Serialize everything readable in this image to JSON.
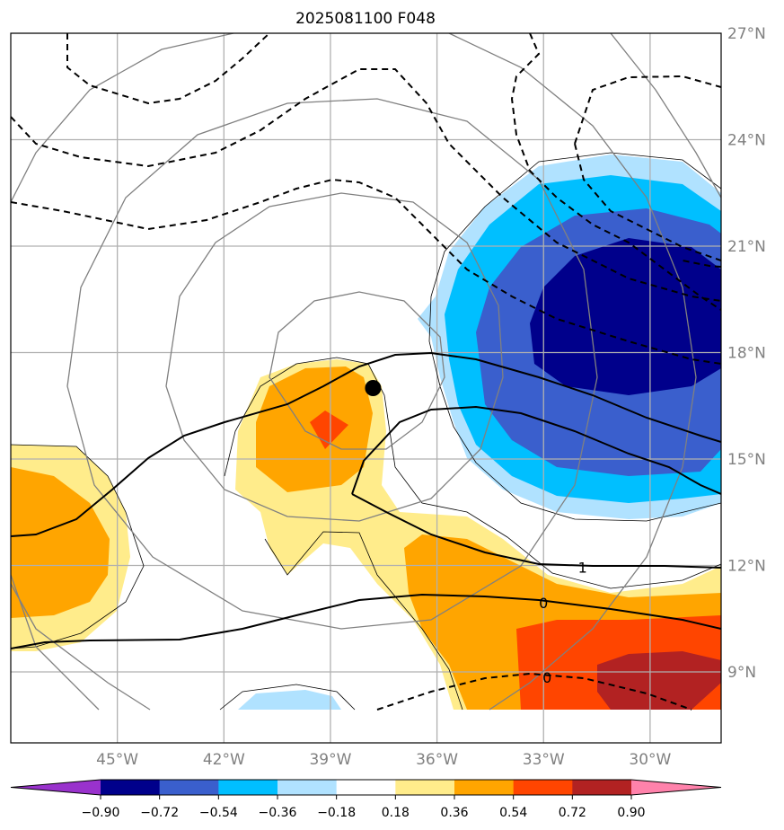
{
  "title": "2025081100 F048",
  "map": {
    "lon_range": [
      -48,
      -28
    ],
    "lat_range": [
      7,
      27
    ],
    "lon_ticks": [
      {
        "value": -45,
        "label": "45°W"
      },
      {
        "value": -42,
        "label": "42°W"
      },
      {
        "value": -39,
        "label": "39°W"
      },
      {
        "value": -36,
        "label": "36°W"
      },
      {
        "value": -33,
        "label": "33°W"
      },
      {
        "value": -30,
        "label": "30°W"
      }
    ],
    "lat_ticks": [
      {
        "value": 27,
        "label": "27°N"
      },
      {
        "value": 24,
        "label": "24°N"
      },
      {
        "value": 21,
        "label": "21°N"
      },
      {
        "value": 18,
        "label": "18°N"
      },
      {
        "value": 15,
        "label": "15°N"
      },
      {
        "value": 12,
        "label": "12°N"
      },
      {
        "value": 9,
        "label": "9°N"
      }
    ],
    "grid": true,
    "tick_label_color": "#808080",
    "storm_center": {
      "lon": -37.8,
      "lat": 17.0
    },
    "contour_labels": [
      {
        "text": "1",
        "lon": -31.9,
        "lat": 11.95
      },
      {
        "text": "0",
        "lon": -33.0,
        "lat": 10.95
      },
      {
        "text": "0",
        "lon": -32.9,
        "lat": 8.85
      }
    ]
  },
  "colorbar": {
    "boundaries": [
      "−0.90",
      "−0.72",
      "−0.54",
      "−0.36",
      "−0.18",
      "0.18",
      "0.36",
      "0.54",
      "0.72",
      "0.90"
    ],
    "colors": [
      "#9932cc",
      "#00008b",
      "#3a5fcd",
      "#00bfff",
      "#b0e2ff",
      "#ffffff",
      "#ffec8b",
      "#ffa500",
      "#ff4500",
      "#b22222",
      "#ff82ab"
    ],
    "extend": "both"
  }
}
